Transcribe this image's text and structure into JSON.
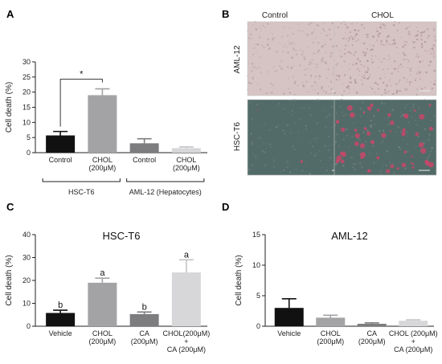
{
  "panels": {
    "a": {
      "letter": "A"
    },
    "b": {
      "letter": "B"
    },
    "c": {
      "letter": "C"
    },
    "d": {
      "letter": "D"
    }
  },
  "chart_data": [
    {
      "panel": "A",
      "type": "bar",
      "categories": [
        "Control",
        "CHOL\n(200μM)",
        "Control",
        "CHOL\n(200μM)"
      ],
      "values": [
        5.7,
        19.0,
        3.1,
        1.5
      ],
      "errors": [
        1.3,
        2.1,
        1.5,
        0.4
      ],
      "bar_colors": [
        "#111111",
        "#a3a3a6",
        "#7d7d7f",
        "#d7d7da"
      ],
      "groups": [
        {
          "label": "HSC-T6",
          "categories": [
            0,
            1
          ]
        },
        {
          "label": "AML-12 (Hepatocytes)",
          "categories": [
            2,
            3
          ]
        }
      ],
      "significance": {
        "between": [
          0,
          1
        ],
        "label": "*"
      },
      "ylabel": "Cell death (%)",
      "ylim": [
        0,
        30
      ],
      "yticks": [
        0,
        5,
        10,
        15,
        20,
        25,
        30
      ],
      "grid": false
    },
    {
      "panel": "C",
      "type": "bar",
      "title": "HSC-T6",
      "categories": [
        "Vehicle",
        "CHOL\n(200μM)",
        "CA\n(200μM)",
        "CHOL(200μM)\n+\nCA (200μM)"
      ],
      "values": [
        5.8,
        19.0,
        5.3,
        23.5
      ],
      "errors": [
        1.2,
        2.0,
        0.9,
        5.5
      ],
      "bar_colors": [
        "#111111",
        "#a3a3a6",
        "#7d7d7f",
        "#d7d7da"
      ],
      "annotations": [
        "b",
        "a",
        "b",
        "a"
      ],
      "ylabel": "Cell death (%)",
      "ylim": [
        0,
        40
      ],
      "yticks": [
        0,
        10,
        20,
        30,
        40
      ],
      "grid": false
    },
    {
      "panel": "D",
      "type": "bar",
      "title": "AML-12",
      "categories": [
        "Vehicle",
        "CHOL\n(200μM)",
        "CA\n(200μM)",
        "CHOL (200μM)\n+\nCA (200μM)"
      ],
      "values": [
        3.0,
        1.4,
        0.4,
        0.9
      ],
      "errors": [
        1.5,
        0.4,
        0.15,
        0.15
      ],
      "bar_colors": [
        "#111111",
        "#a3a3a6",
        "#7d7d7f",
        "#d7d7da"
      ],
      "ylabel": "Cell death (%)",
      "ylim": [
        0,
        15
      ],
      "yticks": [
        0,
        5,
        10,
        15
      ],
      "grid": false
    }
  ],
  "micrographs": {
    "col_labels": [
      "Control",
      "CHOL"
    ],
    "row_labels": [
      "AML-12",
      "HSC-T6"
    ],
    "aml_bg": "#d6c3c3",
    "hsc_bg": "#536b68",
    "stain_color": "#c8466b"
  }
}
